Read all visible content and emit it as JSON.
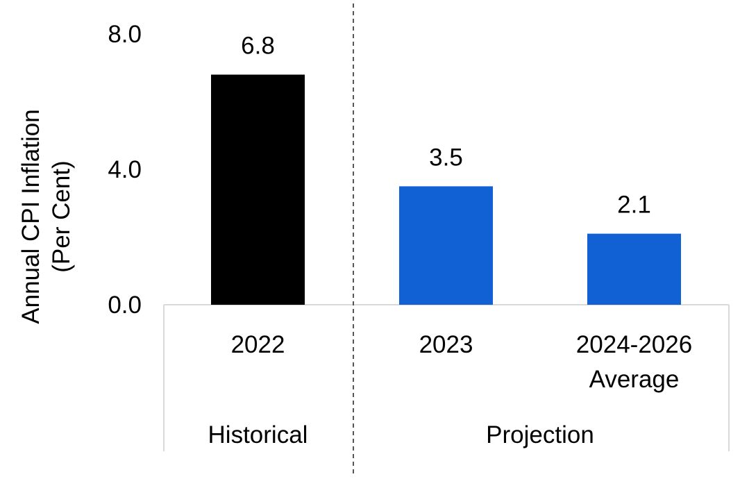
{
  "chart_data": {
    "type": "bar",
    "title": "",
    "ylabel_lines": [
      "Annual CPI Inflation",
      "(Per Cent)"
    ],
    "ylim": [
      0,
      8
    ],
    "yticks": [
      {
        "value": 0,
        "label": "0.0"
      },
      {
        "value": 4,
        "label": "4.0"
      },
      {
        "value": 8,
        "label": "8.0"
      }
    ],
    "grid": false,
    "categories": [
      {
        "label_lines": [
          "2022"
        ],
        "group": "Historical"
      },
      {
        "label_lines": [
          "2023"
        ],
        "group": "Projection"
      },
      {
        "label_lines": [
          "2024-2026",
          "Average"
        ],
        "group": "Projection"
      }
    ],
    "values": [
      6.8,
      3.5,
      2.1
    ],
    "data_labels": [
      "6.8",
      "3.5",
      "2.1"
    ],
    "bar_colors": [
      "#000000",
      "#1261D4",
      "#1261D4"
    ],
    "groups": [
      {
        "label": "Historical",
        "span": [
          0,
          0
        ]
      },
      {
        "label": "Projection",
        "span": [
          1,
          2
        ]
      }
    ],
    "divider_style": "dashed",
    "axis_color": "#D9D9D9"
  }
}
